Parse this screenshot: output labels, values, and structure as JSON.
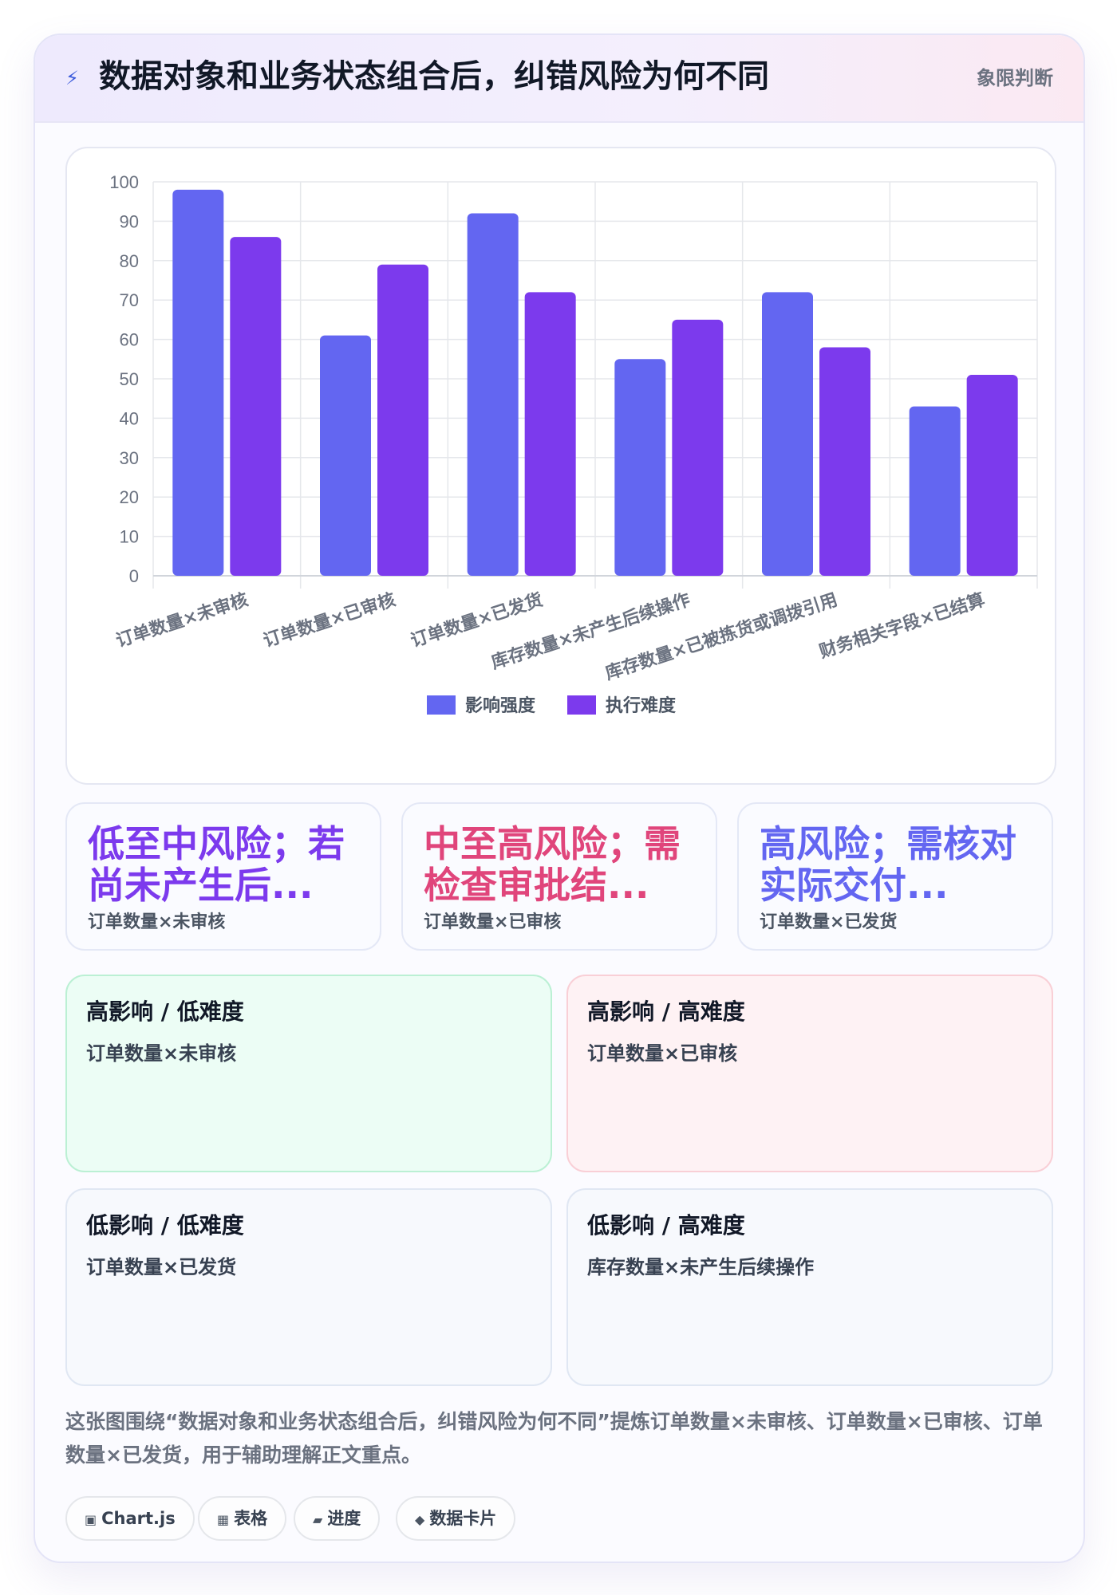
{
  "header": {
    "icon": "lightning-icon",
    "title": "数据对象和业务状态组合后，纠错风险为何不同",
    "tag": "象限判断"
  },
  "chart_data": {
    "type": "bar",
    "categories": [
      "订单数量×未审核",
      "订单数量×已审核",
      "订单数量×已发货",
      "库存数量×未产生后续操作",
      "库存数量×已被拣货或调拨引用",
      "财务相关字段×已结算"
    ],
    "series": [
      {
        "name": "影响强度",
        "color": "#6366f1",
        "values": [
          98,
          61,
          92,
          55,
          72,
          43
        ]
      },
      {
        "name": "执行难度",
        "color": "#7c3aed",
        "values": [
          86,
          79,
          72,
          65,
          58,
          51
        ]
      }
    ],
    "ylim": [
      0,
      100
    ],
    "yticks": [
      0,
      10,
      20,
      30,
      40,
      50,
      60,
      70,
      80,
      90,
      100
    ],
    "grid": true,
    "legend": "bottom"
  },
  "kpis": [
    {
      "value": "低至中风险；若尚未产生后...",
      "label": "订单数量×未审核",
      "color": "#7c3aed"
    },
    {
      "value": "中至高风险；需检查审批结...",
      "label": "订单数量×已审核",
      "color": "#e0457b"
    },
    {
      "value": "高风险；需核对实际交付...",
      "label": "订单数量×已发货",
      "color": "#6366f1"
    }
  ],
  "quadrants": [
    {
      "title": "高影响 / 低难度",
      "item": "订单数量×未审核",
      "bg": "#ecfdf5",
      "border": "#bbf0d4"
    },
    {
      "title": "高影响 / 高难度",
      "item": "订单数量×已审核",
      "bg": "#fef2f4",
      "border": "#f9cfd6"
    },
    {
      "title": "低影响 / 低难度",
      "item": "订单数量×已发货",
      "bg": "#f7f9fd",
      "border": "#e0e7f3"
    },
    {
      "title": "低影响 / 高难度",
      "item": "库存数量×未产生后续操作",
      "bg": "#f7f9fd",
      "border": "#e0e7f3"
    }
  ],
  "caption": "这张图围绕“数据对象和业务状态组合后，纠错风险为何不同”提炼订单数量×未审核、订单数量×已审核、订单数量×已发货，用于辅助理解正文重点。",
  "chips": [
    {
      "icon": "chart-icon",
      "glyph": "▣",
      "label": "Chart.js"
    },
    {
      "icon": "table-icon",
      "glyph": "▦",
      "label": "表格"
    },
    {
      "icon": "progress-icon",
      "glyph": "▰",
      "label": "进度"
    },
    {
      "icon": "data-card-icon",
      "glyph": "◆",
      "label": "数据卡片"
    }
  ]
}
